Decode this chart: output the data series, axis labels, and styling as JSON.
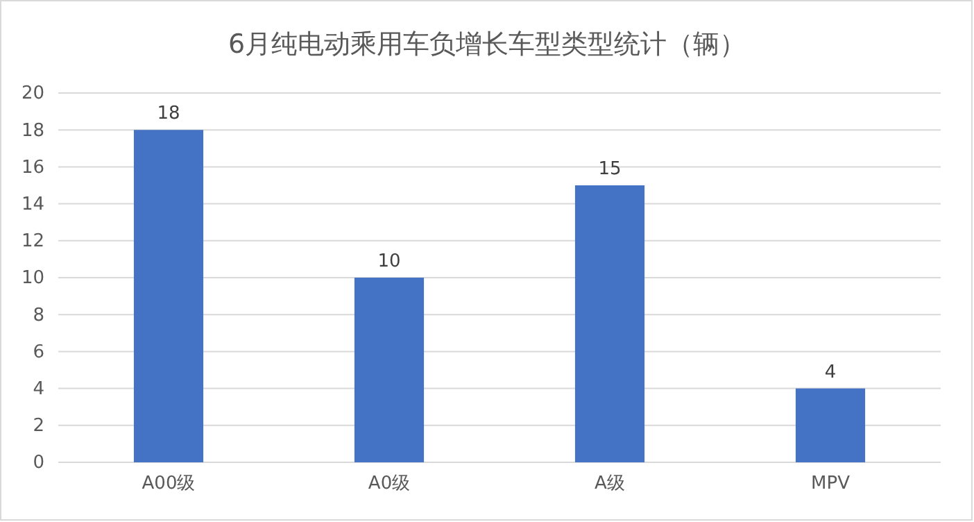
{
  "chart_data": {
    "type": "bar",
    "title": "6月纯电动乘用车负增长车型类型统计（辆）",
    "categories": [
      "A00级",
      "A0级",
      "A级",
      "MPV"
    ],
    "values": [
      18,
      10,
      15,
      4
    ],
    "color": "#4472c4",
    "ylim": [
      0,
      20
    ],
    "yticks": [
      0,
      2,
      4,
      6,
      8,
      10,
      12,
      14,
      16,
      18,
      20
    ],
    "grid": "y",
    "data_labels": true
  }
}
